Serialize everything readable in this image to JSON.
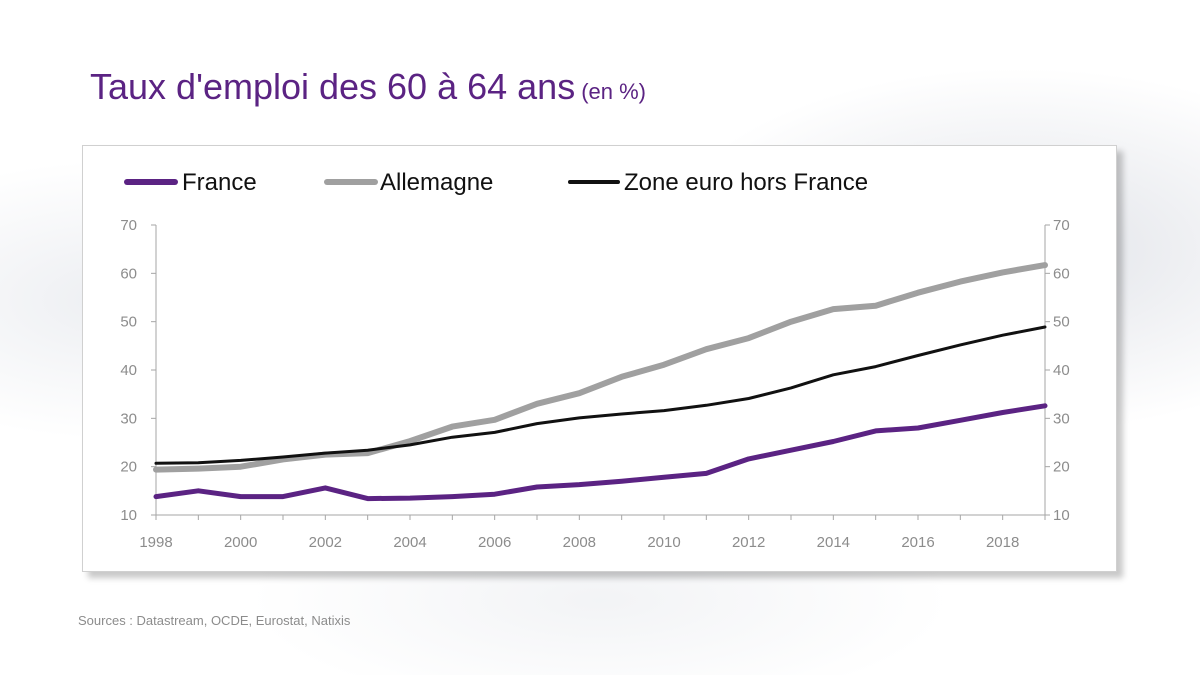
{
  "title": {
    "main": "Taux d'emploi des 60 à 64 ans",
    "unit": "(en %)"
  },
  "source": "Sources : Datastream, OCDE, Eurostat, Natixis",
  "chart_data": {
    "type": "line",
    "x": [
      1998,
      1999,
      2000,
      2001,
      2002,
      2003,
      2004,
      2005,
      2006,
      2007,
      2008,
      2009,
      2010,
      2011,
      2012,
      2013,
      2014,
      2015,
      2016,
      2017,
      2018,
      2019
    ],
    "x_tick_labels": [
      "1998",
      "2000",
      "2002",
      "2004",
      "2006",
      "2008",
      "2010",
      "2012",
      "2014",
      "2016",
      "2018"
    ],
    "y_tick_labels": [
      "10",
      "20",
      "30",
      "40",
      "50",
      "60",
      "70"
    ],
    "ylim": [
      10,
      70
    ],
    "xlim": [
      1998,
      2019
    ],
    "y_axis_both_sides": true,
    "grid": false,
    "legend_position": "top",
    "series": [
      {
        "name": "France",
        "color": "#5b2383",
        "values": [
          13.8,
          15.0,
          13.8,
          13.8,
          15.6,
          13.4,
          13.5,
          13.8,
          14.3,
          15.8,
          16.3,
          17.0,
          17.8,
          18.6,
          21.6,
          23.4,
          25.2,
          27.4,
          28.0,
          29.6,
          31.2,
          32.6
        ]
      },
      {
        "name": "Allemagne",
        "color": "#a0a0a0",
        "values": [
          19.4,
          19.6,
          20.0,
          21.5,
          22.5,
          22.8,
          25.3,
          28.3,
          29.7,
          33.0,
          35.2,
          38.6,
          41.1,
          44.3,
          46.6,
          50.0,
          52.6,
          53.3,
          56.0,
          58.3,
          60.2,
          61.7
        ]
      },
      {
        "name": "Zone euro hors France",
        "color": "#111111",
        "values": [
          20.7,
          20.8,
          21.3,
          22.0,
          22.8,
          23.4,
          24.5,
          26.1,
          27.1,
          28.9,
          30.1,
          30.9,
          31.6,
          32.7,
          34.1,
          36.3,
          39.0,
          40.7,
          43.0,
          45.2,
          47.2,
          48.9
        ]
      }
    ]
  }
}
